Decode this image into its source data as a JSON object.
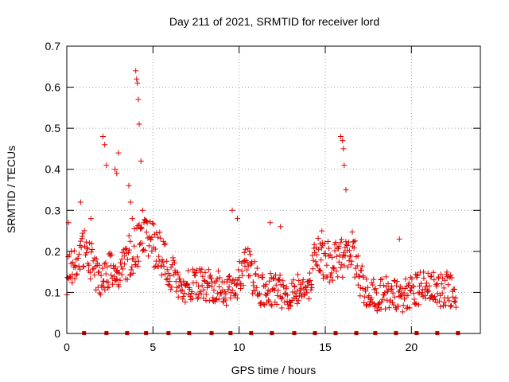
{
  "chart_data": {
    "type": "scatter",
    "title": "Day 211 of 2021, SRMTID for receiver lord",
    "xlabel": "GPS time / hours",
    "ylabel": "SRMTID / TECUs",
    "xlim": [
      0,
      24
    ],
    "ylim": [
      0,
      0.7
    ],
    "xticks": [
      0,
      5,
      10,
      15,
      20
    ],
    "yticks": [
      0,
      0.1,
      0.2,
      0.3,
      0.4,
      0.5,
      0.6,
      0.7
    ],
    "grid": true,
    "marker": "plus",
    "color": "#e00000",
    "markers_at_zero": [
      1.0,
      2.3,
      3.5,
      4.6,
      5.9,
      7.1,
      8.4,
      9.5,
      10.7,
      11.9,
      13.2,
      14.4,
      15.6,
      16.8,
      17.9,
      19.1,
      20.3,
      21.5,
      22.7
    ],
    "series": [
      {
        "name": "SRMTID",
        "x_start": 0.0,
        "x_step": 0.5,
        "values": [
          0.14,
          0.18,
          0.2,
          0.17,
          0.12,
          0.15,
          0.13,
          0.18,
          0.21,
          0.23,
          0.22,
          0.19,
          0.15,
          0.12,
          0.11,
          0.13,
          0.12,
          0.11,
          0.12,
          0.1,
          0.13,
          0.17,
          0.12,
          0.1,
          0.11,
          0.1,
          0.09,
          0.12,
          0.11,
          0.2,
          0.18,
          0.17,
          0.18,
          0.22,
          0.13,
          0.1,
          0.09,
          0.1,
          0.1,
          0.09,
          0.1,
          0.11,
          0.12,
          0.1,
          0.11,
          0.1,
          0.08,
          0.09
        ]
      },
      {
        "name": "peaks",
        "x": [
          0.1,
          0.8,
          1.4,
          2.1,
          2.2,
          2.3,
          2.8,
          2.9,
          3.0,
          3.6,
          3.7,
          3.8,
          4.0,
          4.05,
          4.1,
          4.15,
          4.2,
          4.3,
          4.4,
          9.6,
          9.9,
          11.8,
          12.4,
          14.8,
          15.9,
          16.0,
          16.05,
          16.1,
          16.2,
          19.3
        ],
        "y": [
          0.27,
          0.32,
          0.28,
          0.48,
          0.46,
          0.41,
          0.4,
          0.39,
          0.44,
          0.36,
          0.32,
          0.28,
          0.64,
          0.62,
          0.61,
          0.57,
          0.51,
          0.42,
          0.3,
          0.3,
          0.28,
          0.27,
          0.26,
          0.25,
          0.48,
          0.47,
          0.45,
          0.41,
          0.35,
          0.23
        ]
      }
    ]
  }
}
